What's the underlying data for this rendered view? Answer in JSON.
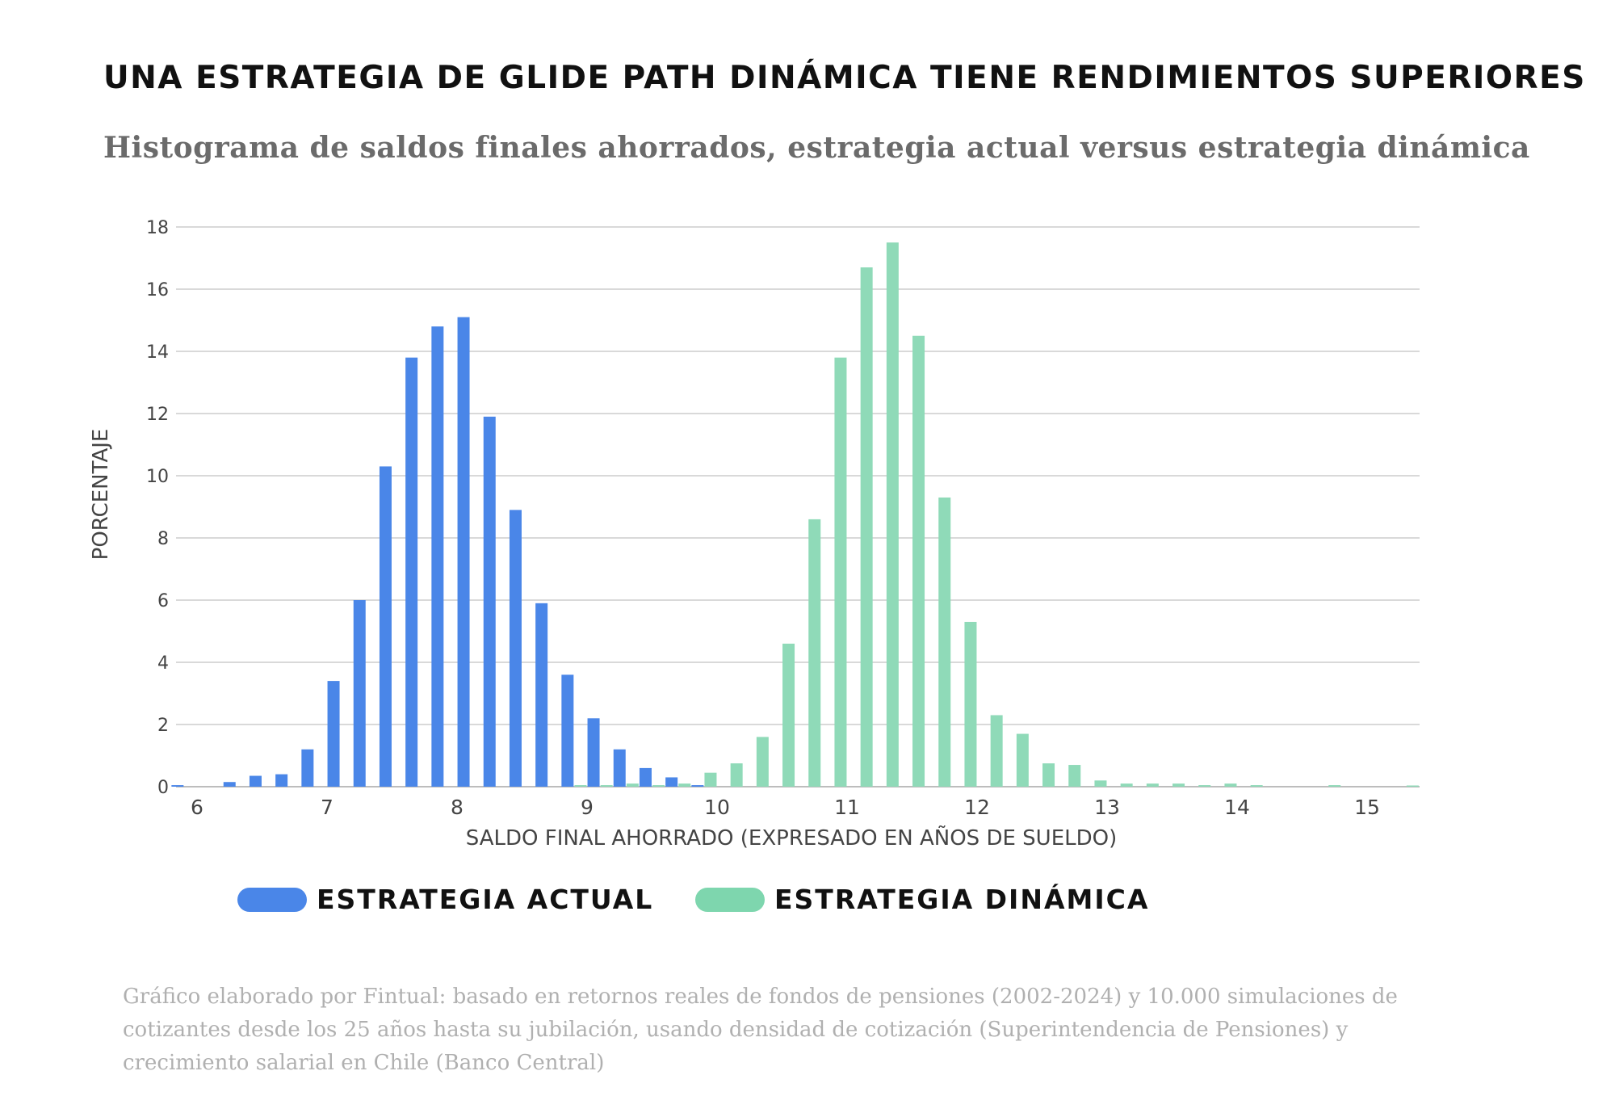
{
  "title": "UNA ESTRATEGIA DE GLIDE PATH DINÁMICA TIENE RENDIMIENTOS SUPERIORES",
  "subtitle": "Histograma de saldos finales ahorrados, estrategia actual versus estrategia dinámica",
  "colors": {
    "actual": "#4A86E8",
    "dinamica": "#8FDAB8",
    "grid": "#d9d9d9"
  },
  "chart_data": {
    "type": "bar",
    "title": "Histograma de saldos finales ahorrados, estrategia actual versus estrategia dinámica",
    "xlabel": "SALDO FINAL AHORRADO (EXPRESADO EN AÑOS DE SUELDO)",
    "ylabel": "PORCENTAJE",
    "xlim": [
      6,
      15.4
    ],
    "ylim": [
      0,
      18
    ],
    "xticks": [
      "6",
      "7",
      "8",
      "9",
      "10",
      "11",
      "12",
      "13",
      "14",
      "15"
    ],
    "yticks": [
      "0",
      "2",
      "4",
      "6",
      "8",
      "10",
      "12",
      "14",
      "16",
      "18"
    ],
    "bin_width": 0.2,
    "grid": true,
    "series": [
      {
        "name": "ESTRATEGIA ACTUAL",
        "x": [
          5.85,
          6.25,
          6.45,
          6.65,
          6.85,
          7.05,
          7.25,
          7.45,
          7.65,
          7.85,
          8.05,
          8.25,
          8.45,
          8.65,
          8.85,
          9.05,
          9.25,
          9.45,
          9.65,
          9.85
        ],
        "values": [
          0.05,
          0.15,
          0.35,
          0.4,
          1.2,
          3.4,
          6.0,
          10.3,
          13.8,
          14.8,
          15.1,
          11.9,
          8.9,
          5.9,
          3.6,
          2.2,
          1.2,
          0.6,
          0.3,
          0.05
        ]
      },
      {
        "name": "ESTRATEGIA DINÁMICA",
        "x": [
          8.95,
          9.15,
          9.35,
          9.55,
          9.75,
          9.95,
          10.15,
          10.35,
          10.55,
          10.75,
          10.95,
          11.15,
          11.35,
          11.55,
          11.75,
          11.95,
          12.15,
          12.35,
          12.55,
          12.75,
          12.95,
          13.15,
          13.35,
          13.55,
          13.75,
          13.95,
          14.15,
          14.75,
          15.35
        ],
        "values": [
          0.05,
          0.05,
          0.1,
          0.05,
          0.1,
          0.45,
          0.75,
          1.6,
          4.6,
          8.6,
          13.8,
          16.7,
          17.5,
          14.5,
          9.3,
          5.3,
          2.3,
          1.7,
          0.75,
          0.7,
          0.2,
          0.1,
          0.1,
          0.1,
          0.05,
          0.1,
          0.05,
          0.05,
          0.02
        ]
      }
    ]
  },
  "legend": {
    "actual": "ESTRATEGIA ACTUAL",
    "dinamica": "ESTRATEGIA DINÁMICA"
  },
  "footnote": "Gráfico elaborado por Fintual: basado en retornos reales de fondos de pensiones (2002-2024) y 10.000 simulaciones de cotizantes desde los 25 años hasta su jubilación, usando densidad de cotización (Superintendencia de Pensiones) y crecimiento salarial en Chile (Banco Central)"
}
